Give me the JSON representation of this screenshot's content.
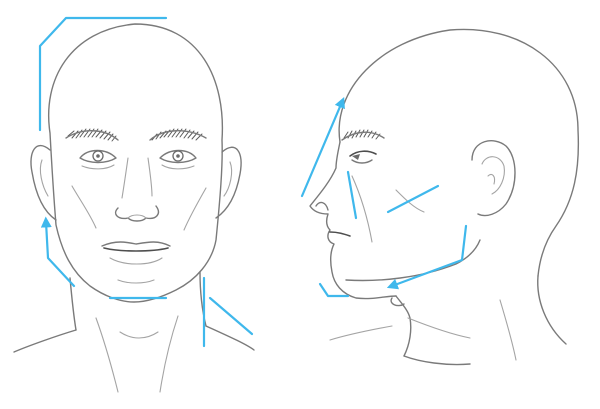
{
  "figure": {
    "views": [
      "front-view",
      "side-view"
    ],
    "guide_color": "#3fb8ec",
    "sketch_color": "#7a7a7a",
    "background": "#ffffff"
  }
}
